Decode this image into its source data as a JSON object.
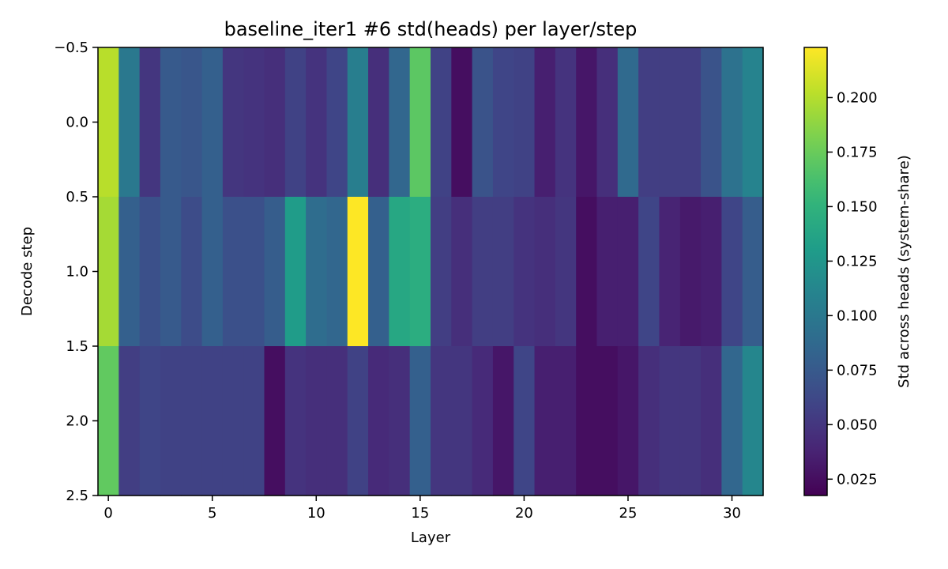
{
  "chart_data": {
    "type": "heatmap",
    "title": "baseline_iter1 #6 std(heads) per layer/step",
    "xlabel": "Layer",
    "ylabel": "Decode step",
    "colorbar_label": "Std across heads (system-share)",
    "colormap": "viridis",
    "vmin": 0.0175,
    "vmax": 0.223,
    "xlim": [
      -0.5,
      31.5
    ],
    "ylim": [
      2.5,
      -0.5
    ],
    "x_ticks": [
      0,
      5,
      10,
      15,
      20,
      25,
      30
    ],
    "x_tick_labels": [
      "0",
      "5",
      "10",
      "15",
      "20",
      "25",
      "30"
    ],
    "y_ticks": [
      -0.5,
      0.0,
      0.5,
      1.0,
      1.5,
      2.0,
      2.5
    ],
    "y_tick_labels": [
      "−0.5",
      "0.0",
      "0.5",
      "1.0",
      "1.5",
      "2.0",
      "2.5"
    ],
    "colorbar_ticks": [
      0.025,
      0.05,
      0.075,
      0.1,
      0.125,
      0.15,
      0.175,
      0.2
    ],
    "colorbar_tick_labels": [
      "0.025",
      "0.050",
      "0.075",
      "0.100",
      "0.125",
      "0.150",
      "0.175",
      "0.200"
    ],
    "layers": [
      0,
      1,
      2,
      3,
      4,
      5,
      6,
      7,
      8,
      9,
      10,
      11,
      12,
      13,
      14,
      15,
      16,
      17,
      18,
      19,
      20,
      21,
      22,
      23,
      24,
      25,
      26,
      27,
      28,
      29,
      30,
      31
    ],
    "steps": [
      0,
      1,
      2
    ],
    "values": [
      [
        0.201,
        0.1,
        0.05,
        0.075,
        0.072,
        0.08,
        0.05,
        0.048,
        0.045,
        0.058,
        0.048,
        0.06,
        0.105,
        0.045,
        0.085,
        0.17,
        0.058,
        0.025,
        0.07,
        0.06,
        0.058,
        0.035,
        0.048,
        0.03,
        0.045,
        0.088,
        0.055,
        0.055,
        0.055,
        0.07,
        0.095,
        0.11
      ],
      [
        0.195,
        0.08,
        0.068,
        0.075,
        0.065,
        0.08,
        0.068,
        0.068,
        0.078,
        0.13,
        0.09,
        0.085,
        0.223,
        0.08,
        0.14,
        0.145,
        0.055,
        0.045,
        0.055,
        0.055,
        0.048,
        0.045,
        0.05,
        0.025,
        0.035,
        0.035,
        0.06,
        0.038,
        0.032,
        0.035,
        0.06,
        0.078
      ],
      [
        0.172,
        0.055,
        0.06,
        0.058,
        0.058,
        0.058,
        0.058,
        0.058,
        0.025,
        0.048,
        0.045,
        0.045,
        0.058,
        0.042,
        0.045,
        0.08,
        0.05,
        0.05,
        0.042,
        0.03,
        0.06,
        0.035,
        0.035,
        0.025,
        0.025,
        0.03,
        0.045,
        0.05,
        0.05,
        0.045,
        0.085,
        0.112
      ]
    ],
    "grid": false,
    "colorbar_position": "right"
  }
}
